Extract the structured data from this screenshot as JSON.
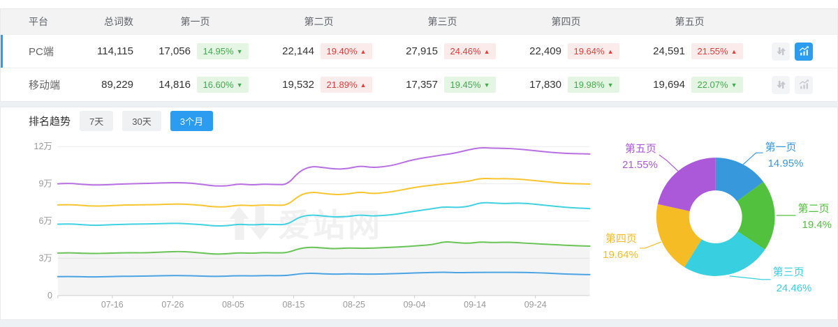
{
  "table": {
    "columns": [
      "平台",
      "总词数",
      "第一页",
      "第二页",
      "第三页",
      "第四页",
      "第五页"
    ],
    "rows": [
      {
        "platform": "PC端",
        "total": "114,115",
        "active": true,
        "chart_active": true,
        "pages": [
          {
            "value": "17,056",
            "pct": "14.95%",
            "dir": "down",
            "arrow": "▼"
          },
          {
            "value": "22,144",
            "pct": "19.40%",
            "dir": "up",
            "arrow": "▲"
          },
          {
            "value": "27,915",
            "pct": "24.46%",
            "dir": "up",
            "arrow": "▲"
          },
          {
            "value": "22,409",
            "pct": "19.64%",
            "dir": "up",
            "arrow": "▲"
          },
          {
            "value": "24,591",
            "pct": "21.55%",
            "dir": "up",
            "arrow": "▲"
          }
        ]
      },
      {
        "platform": "移动端",
        "total": "89,229",
        "active": false,
        "chart_active": false,
        "pages": [
          {
            "value": "14,816",
            "pct": "16.60%",
            "dir": "down",
            "arrow": "▼"
          },
          {
            "value": "19,532",
            "pct": "21.89%",
            "dir": "up",
            "arrow": "▲"
          },
          {
            "value": "17,357",
            "pct": "19.45%",
            "dir": "down",
            "arrow": "▼"
          },
          {
            "value": "17,830",
            "pct": "19.98%",
            "dir": "down",
            "arrow": "▼"
          },
          {
            "value": "19,694",
            "pct": "22.07%",
            "dir": "down",
            "arrow": "▼"
          }
        ]
      }
    ]
  },
  "trend": {
    "label": "排名趋势",
    "tabs": [
      {
        "label": "7天",
        "active": false
      },
      {
        "label": "30天",
        "active": false
      },
      {
        "label": "3个月",
        "active": true
      }
    ]
  },
  "watermark": "爱站网",
  "icons": {
    "sort_icon": "down-up-arrows",
    "chart_icon": "line-chart-with-bars",
    "up_icon": "▲",
    "down_icon": "▼"
  },
  "colors": {
    "accent": "#2b9cf0",
    "rise_red": "#e03c3c",
    "rise_bg": "#fcebeb",
    "fall_green": "#44a94f",
    "fall_bg": "#e4f5e3",
    "axis_text": "#999999",
    "grid": "#ececec"
  },
  "chart_data": [
    {
      "type": "line",
      "title": "排名趋势 (3个月)",
      "x_tick_labels": [
        "07-16",
        "07-26",
        "08-05",
        "08-15",
        "08-25",
        "09-04",
        "09-14",
        "09-24"
      ],
      "x_tick_days": [
        9,
        19,
        29,
        39,
        49,
        59,
        69,
        79
      ],
      "total_days": 88,
      "sample_interval_days": 2,
      "ylim": [
        0,
        120000
      ],
      "y_ticks_wan": [
        0,
        3,
        6,
        9,
        12
      ],
      "y_tick_labels": [
        "0",
        "3万",
        "6万",
        "9万",
        "12万"
      ],
      "values_unit": "万 (10,000 words)",
      "grid": true,
      "series": [
        {
          "name": "第一页",
          "color": "#4aa3e3",
          "area_fill": false,
          "values_wan": [
            1.52,
            1.53,
            1.51,
            1.5,
            1.52,
            1.54,
            1.55,
            1.56,
            1.58,
            1.6,
            1.61,
            1.59,
            1.56,
            1.54,
            1.56,
            1.6,
            1.58,
            1.61,
            1.6,
            1.61,
            1.76,
            1.8,
            1.74,
            1.72,
            1.75,
            1.73,
            1.72,
            1.74,
            1.77,
            1.8,
            1.83,
            1.86,
            1.88,
            1.84,
            1.85,
            1.87,
            1.86,
            1.87,
            1.87,
            1.85,
            1.82,
            1.78,
            1.73,
            1.7,
            1.68
          ]
        },
        {
          "name": "第二页",
          "color": "#67c455",
          "area_fill": true,
          "values_wan": [
            3.42,
            3.45,
            3.4,
            3.38,
            3.4,
            3.43,
            3.45,
            3.44,
            3.47,
            3.52,
            3.55,
            3.5,
            3.42,
            3.33,
            3.36,
            3.45,
            3.4,
            3.46,
            3.43,
            3.45,
            3.8,
            3.9,
            3.82,
            3.76,
            3.84,
            3.8,
            3.82,
            3.86,
            3.9,
            3.96,
            4.02,
            4.1,
            4.35,
            4.25,
            4.2,
            4.32,
            4.26,
            4.3,
            4.26,
            4.2,
            4.15,
            4.1,
            4.05,
            4.0,
            3.98
          ]
        },
        {
          "name": "第三页",
          "color": "#40d2e2",
          "area_fill": false,
          "values_wan": [
            5.75,
            5.78,
            5.7,
            5.65,
            5.68,
            5.72,
            5.75,
            5.76,
            5.78,
            5.8,
            5.82,
            5.77,
            5.7,
            5.6,
            5.62,
            5.75,
            5.68,
            5.74,
            5.71,
            5.72,
            6.35,
            6.5,
            6.4,
            6.32,
            6.36,
            6.5,
            6.4,
            6.45,
            6.55,
            6.72,
            6.85,
            7.0,
            7.15,
            7.08,
            7.18,
            7.5,
            7.45,
            7.4,
            7.45,
            7.4,
            7.3,
            7.2,
            7.1,
            7.05,
            7.0
          ]
        },
        {
          "name": "第四页",
          "color": "#f8c52e",
          "area_fill": false,
          "values_wan": [
            7.3,
            7.33,
            7.25,
            7.2,
            7.22,
            7.27,
            7.3,
            7.3,
            7.32,
            7.35,
            7.38,
            7.33,
            7.25,
            7.13,
            7.15,
            7.3,
            7.22,
            7.3,
            7.27,
            7.28,
            8.1,
            8.35,
            8.22,
            8.12,
            8.17,
            8.35,
            8.2,
            8.28,
            8.42,
            8.62,
            8.78,
            8.9,
            9.0,
            9.1,
            9.2,
            9.45,
            9.4,
            9.42,
            9.38,
            9.3,
            9.2,
            9.12,
            9.02,
            9.0,
            8.98
          ]
        },
        {
          "name": "第五页",
          "color": "#b96fe4",
          "area_fill": false,
          "values_wan": [
            9.0,
            9.05,
            8.95,
            8.9,
            8.92,
            8.97,
            9.0,
            9.02,
            9.05,
            9.08,
            9.1,
            9.05,
            8.95,
            8.82,
            8.82,
            9.0,
            8.9,
            8.98,
            8.93,
            8.93,
            10.05,
            10.42,
            10.3,
            10.18,
            10.22,
            10.45,
            10.3,
            10.38,
            10.55,
            10.85,
            11.05,
            11.2,
            11.35,
            11.5,
            11.75,
            11.92,
            11.87,
            11.86,
            11.8,
            11.72,
            11.6,
            11.52,
            11.45,
            11.42,
            11.4
          ]
        }
      ]
    },
    {
      "type": "pie",
      "donut": true,
      "start_angle": "top",
      "direction": "clockwise",
      "labels": [
        "第一页",
        "第二页",
        "第三页",
        "第四页",
        "第五页"
      ],
      "values": [
        14.95,
        19.4,
        24.46,
        19.64,
        21.55
      ],
      "display_values": [
        "14.95%",
        "19.4%",
        "24.46%",
        "19.64%",
        "21.55%"
      ],
      "colors": [
        "#3898dc",
        "#52c13e",
        "#38cfe0",
        "#f5bc25",
        "#ab59d8"
      ]
    }
  ]
}
